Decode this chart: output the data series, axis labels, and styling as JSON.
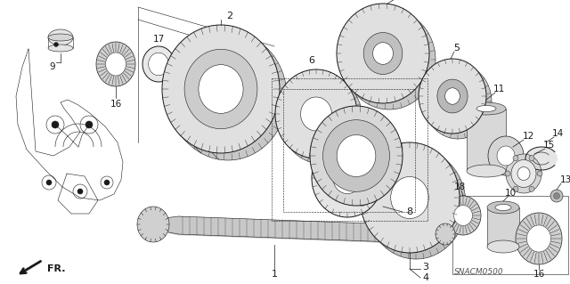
{
  "bg_color": "#ffffff",
  "line_color": "#1a1a1a",
  "fig_width": 6.4,
  "fig_height": 3.19,
  "dpi": 100,
  "watermark": "SNACM0500",
  "fr_label": "FR."
}
